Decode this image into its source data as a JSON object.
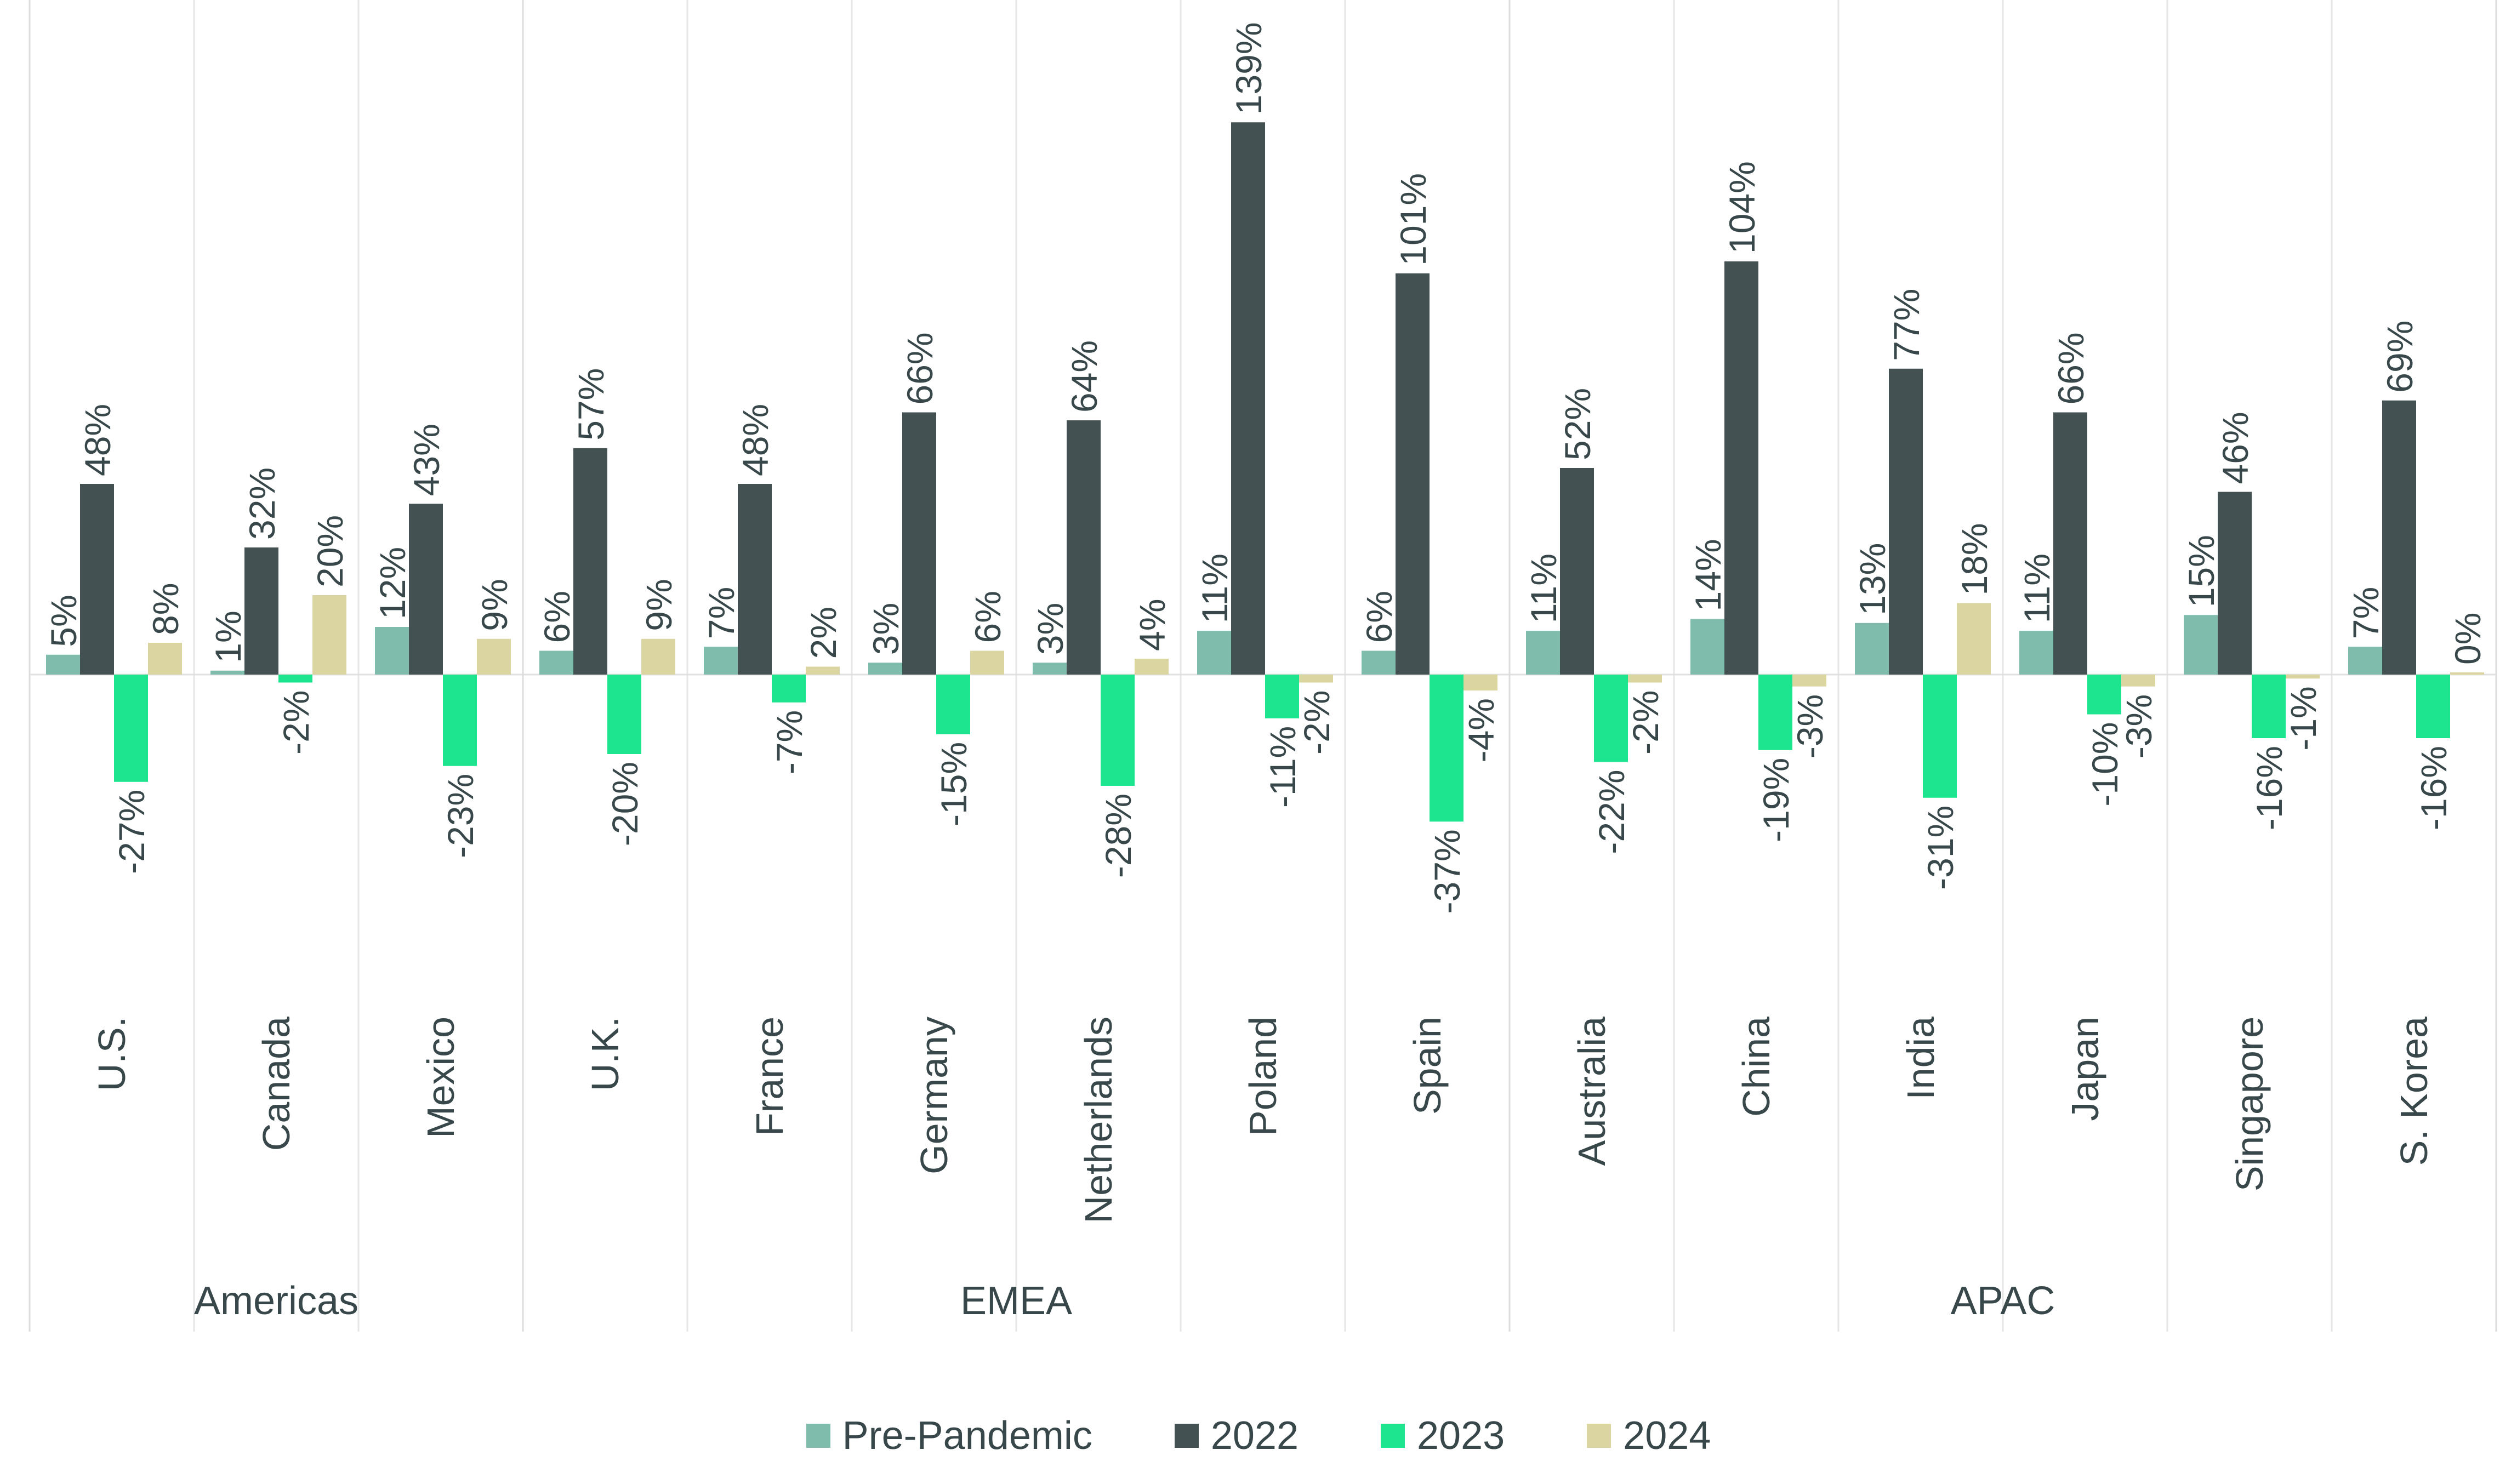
{
  "colors": {
    "Pre-Pandemic": "#7fbcab",
    "2022": "#435153",
    "2023": "#1de58f",
    "2024": "#dbd6a1",
    "text": "#37474a",
    "grid": "#e6e6e6"
  },
  "chart_data": {
    "type": "bar",
    "title": "",
    "xlabel": "",
    "ylabel": "",
    "ylim": [
      -40,
      140
    ],
    "grid": true,
    "legend_position": "bottom",
    "value_suffix": "%",
    "groups": [
      {
        "name": "Americas",
        "categories": [
          "U.S.",
          "Canada",
          "Mexico"
        ]
      },
      {
        "name": "EMEA",
        "categories": [
          "U.K.",
          "France",
          "Germany",
          "Netherlands",
          "Poland",
          "Spain"
        ]
      },
      {
        "name": "APAC",
        "categories": [
          "Australia",
          "China",
          "India",
          "Japan",
          "Singapore",
          "S. Korea"
        ]
      }
    ],
    "categories": [
      "U.S.",
      "Canada",
      "Mexico",
      "U.K.",
      "France",
      "Germany",
      "Netherlands",
      "Poland",
      "Spain",
      "Australia",
      "China",
      "India",
      "Japan",
      "Singapore",
      "S. Korea"
    ],
    "series": [
      {
        "name": "Pre-Pandemic",
        "values": [
          5,
          1,
          12,
          6,
          7,
          3,
          3,
          11,
          6,
          11,
          14,
          13,
          11,
          15,
          7
        ]
      },
      {
        "name": "2022",
        "values": [
          48,
          32,
          43,
          57,
          48,
          66,
          64,
          139,
          101,
          52,
          104,
          77,
          66,
          46,
          69
        ]
      },
      {
        "name": "2023",
        "values": [
          -27,
          -2,
          -23,
          -20,
          -7,
          -15,
          -28,
          -11,
          -37,
          -22,
          -19,
          -31,
          -10,
          -16,
          -16
        ]
      },
      {
        "name": "2024",
        "values": [
          8,
          20,
          9,
          9,
          2,
          6,
          4,
          -2,
          -4,
          -2,
          -3,
          18,
          -3,
          -1,
          0
        ]
      }
    ]
  }
}
